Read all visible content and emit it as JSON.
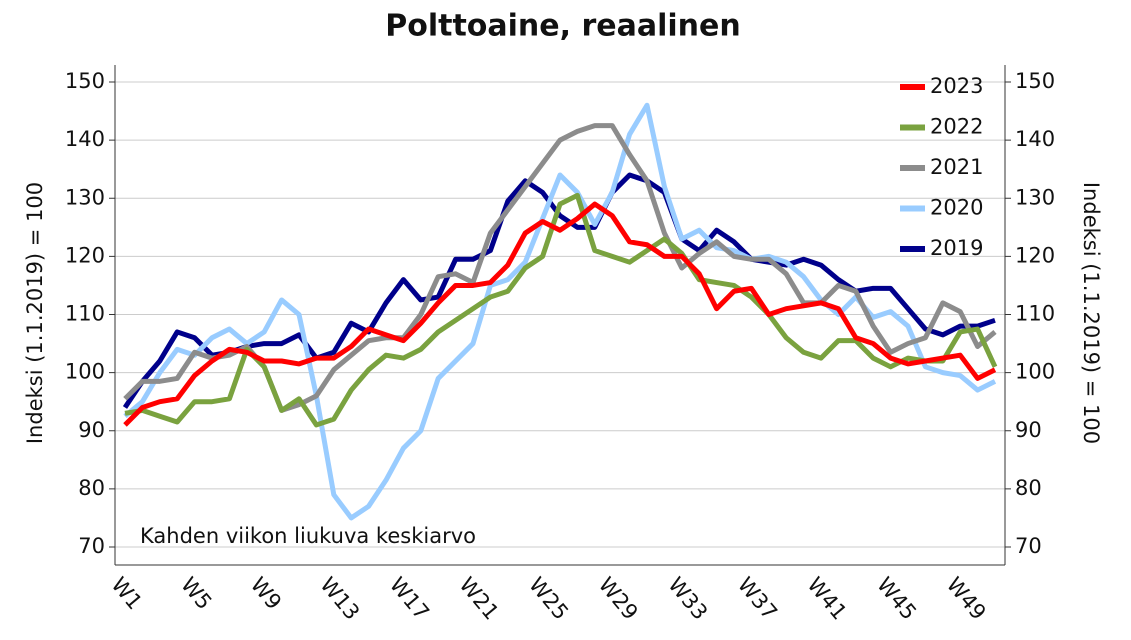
{
  "chart_data": {
    "type": "line",
    "title": "Polttoaine, reaalinen",
    "ylabel": "Indeksi (1.1.2019) = 100",
    "y2label": "Indeksi (1.1.2019) = 100",
    "annotation": "Kahden viikon liukuva keskiarvo",
    "categories": [
      "W1",
      null,
      null,
      null,
      "W5",
      null,
      null,
      null,
      "W9",
      null,
      null,
      null,
      "W13",
      null,
      null,
      null,
      "W17",
      null,
      null,
      null,
      "W21",
      null,
      null,
      null,
      "W25",
      null,
      null,
      null,
      "W29",
      null,
      null,
      null,
      "W33",
      null,
      null,
      null,
      "W37",
      null,
      null,
      null,
      "W41",
      null,
      null,
      null,
      "W45",
      null,
      null,
      null,
      "W49",
      null,
      null
    ],
    "ylim": [
      70,
      150
    ],
    "yticks": [
      70,
      80,
      90,
      100,
      110,
      120,
      130,
      140,
      150
    ],
    "y2lim": [
      70,
      150
    ],
    "y2ticks": [
      70,
      80,
      90,
      100,
      110,
      120,
      130,
      140,
      150
    ],
    "grid": true,
    "legend": "top-right",
    "series": [
      {
        "name": "2023",
        "color": "#ff0000",
        "values": [
          91,
          94,
          95,
          95.5,
          99.5,
          102,
          104,
          103.5,
          102,
          102,
          101.5,
          102.5,
          102.5,
          104.5,
          107.5,
          106.5,
          105.5,
          108.5,
          112,
          115,
          115,
          115.5,
          118.5,
          124,
          126,
          124.5,
          126.5,
          129,
          127,
          122.5,
          122,
          120,
          120,
          117,
          111,
          114,
          114.5,
          110,
          111,
          111.5,
          112,
          111,
          106,
          105,
          102.5,
          101.5,
          102,
          102.5,
          103,
          99,
          100.5
        ]
      },
      {
        "name": "2022",
        "color": "#7aa23f",
        "values": [
          93,
          93.5,
          92.5,
          91.5,
          95,
          95,
          95.5,
          104,
          101,
          93.5,
          95.5,
          91,
          92,
          97,
          100.5,
          103,
          102.5,
          104,
          107,
          109,
          111,
          113,
          114,
          118,
          120,
          129,
          130.5,
          121,
          120,
          119,
          121,
          123,
          120.5,
          116,
          115.5,
          115,
          113,
          110,
          106,
          103.5,
          102.5,
          105.5,
          105.5,
          102.5,
          101,
          102.5,
          102,
          102,
          107,
          107.5,
          101
        ]
      },
      {
        "name": "2021",
        "color": "#8c8c8c",
        "values": [
          95.5,
          98.5,
          98.5,
          99,
          103.5,
          102.5,
          103,
          104.5,
          101,
          93.5,
          94.5,
          96,
          100.5,
          103,
          105.5,
          106,
          106,
          110,
          116.5,
          117,
          115.5,
          124,
          128,
          132,
          136,
          140,
          141.5,
          142.5,
          142.5,
          137.5,
          133,
          124,
          118,
          120.5,
          122.5,
          120,
          119.5,
          119.5,
          117,
          112,
          112,
          115,
          114,
          108,
          103.5,
          105,
          106,
          112,
          110.5,
          104.5,
          107
        ]
      },
      {
        "name": "2020",
        "color": "#99ccff",
        "values": [
          92.5,
          95,
          100,
          104,
          103,
          106,
          107.5,
          105,
          107,
          112.5,
          110,
          96,
          79,
          75,
          77,
          81.5,
          87,
          90,
          99,
          102,
          105,
          115,
          116,
          119,
          126.5,
          134,
          131,
          125.5,
          131,
          141,
          146,
          132,
          123,
          124.5,
          121.5,
          121,
          119.5,
          120,
          119,
          116.5,
          112.5,
          110,
          113,
          109.5,
          110.5,
          108,
          101,
          100,
          99.5,
          97,
          98.5
        ]
      },
      {
        "name": "2019",
        "color": "#00008b",
        "values": [
          94,
          98.5,
          102,
          107,
          106,
          103,
          103.5,
          104.5,
          105,
          105,
          106.5,
          102.5,
          103.5,
          108.5,
          107,
          112,
          116,
          112.5,
          113,
          119.5,
          119.5,
          121,
          129.5,
          133,
          131,
          127,
          125,
          125,
          131,
          134,
          133,
          131,
          123,
          121,
          124.5,
          122.5,
          119.5,
          119,
          118.5,
          119.5,
          118.5,
          116,
          114,
          114.5,
          114.5,
          111,
          107.5,
          106.5,
          108,
          108,
          109
        ]
      }
    ]
  }
}
